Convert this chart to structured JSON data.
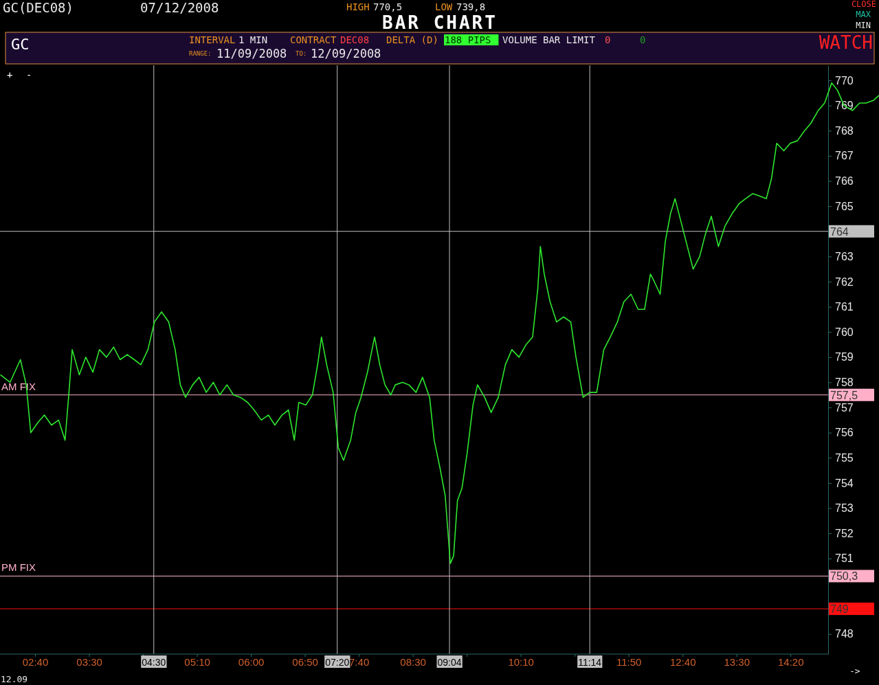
{
  "chart_data": {
    "type": "line",
    "title": "BAR CHART",
    "annotations": [
      "GC(DEC08)",
      "07/12/2008",
      "HIGH",
      "770,5",
      "LOW",
      "739,8",
      "CLOSE",
      "MAX",
      "MIN",
      "GC",
      "INTERVAL",
      "1 MIN",
      "CONTRACT",
      "DEC08",
      "DELTA (D)",
      "188 PIPS",
      "VOLUME BAR LIMIT",
      "0",
      "0",
      "WATCH",
      "RANGE:",
      "11/09/2008",
      "TO:",
      "12/09/2008",
      "+",
      "-",
      "12.09",
      "->",
      {
        "text": "AM FIX",
        "y": 757.5
      },
      {
        "text": "PM FIX",
        "y": 750.3
      }
    ],
    "xlim": [
      2.125,
      15.7
    ],
    "ylim": [
      747.2,
      770.6
    ],
    "xticks": [
      {
        "value": 2.6667,
        "label": "02:40"
      },
      {
        "value": 3.5,
        "label": "03:30"
      },
      {
        "value": 4.3333,
        "label": null
      },
      {
        "value": 5.1667,
        "label": "05:10"
      },
      {
        "value": 6,
        "label": "06:00"
      },
      {
        "value": 6.8333,
        "label": "06:50"
      },
      {
        "value": 7.6667,
        "label": "7:40"
      },
      {
        "value": 8.5,
        "label": "08:30"
      },
      {
        "value": 9.3333,
        "label": null
      },
      {
        "value": 10.1667,
        "label": "10:10"
      },
      {
        "value": 11,
        "label": null
      },
      {
        "value": 11.8333,
        "label": "11:50"
      },
      {
        "value": 12.6667,
        "label": "12:40"
      },
      {
        "value": 13.5,
        "label": "13:30"
      },
      {
        "value": 14.3333,
        "label": "14:20"
      }
    ],
    "yticks": [
      748,
      751,
      752,
      753,
      754,
      755,
      756,
      757,
      758,
      759,
      760,
      761,
      762,
      763,
      765,
      766,
      767,
      768,
      769,
      770
    ],
    "ref_lines": [
      {
        "axis": "y",
        "value": 764,
        "label": "764",
        "color": "#c0c0c0"
      },
      {
        "axis": "y",
        "value": 757.5,
        "label": "757,5",
        "color": "#ffb0c8"
      },
      {
        "axis": "y",
        "value": 750.3,
        "label": "750,3",
        "color": "#ffb0c8"
      },
      {
        "axis": "y",
        "value": 749,
        "label": "749",
        "color": "#ff1010"
      },
      {
        "axis": "x",
        "value": 4.5,
        "label": "04:30",
        "color": "#c0c0c0"
      },
      {
        "axis": "x",
        "value": 7.3333,
        "label": "07:20",
        "color": "#c0c0c0"
      },
      {
        "axis": "x",
        "value": 9.0667,
        "label": "09:04",
        "color": "#c0c0c0"
      },
      {
        "axis": "x",
        "value": 11.2333,
        "label": "11:14",
        "color": "#c0c0c0"
      }
    ],
    "series": [
      {
        "color": "#2ee62e",
        "x": [
          2.13,
          2.28,
          2.44,
          2.53,
          2.6,
          2.71,
          2.81,
          2.92,
          3.03,
          3.13,
          3.19,
          3.24,
          3.35,
          3.45,
          3.56,
          3.66,
          3.77,
          3.88,
          3.98,
          4.09,
          4.2,
          4.3,
          4.41,
          4.51,
          4.62,
          4.73,
          4.83,
          4.91,
          4.99,
          5.1,
          5.2,
          5.31,
          5.42,
          5.52,
          5.63,
          5.73,
          5.84,
          5.95,
          6.05,
          6.16,
          6.27,
          6.37,
          6.48,
          6.58,
          6.67,
          6.74,
          6.85,
          6.95,
          7.03,
          7.09,
          7.17,
          7.27,
          7.35,
          7.43,
          7.54,
          7.62,
          7.7,
          7.8,
          7.91,
          7.99,
          8.07,
          8.16,
          8.23,
          8.34,
          8.44,
          8.55,
          8.65,
          8.76,
          8.83,
          8.92,
          9.0,
          9.08,
          9.13,
          9.19,
          9.26,
          9.34,
          9.43,
          9.5,
          9.61,
          9.71,
          9.82,
          9.93,
          10.03,
          10.14,
          10.25,
          10.35,
          10.43,
          10.47,
          10.53,
          10.62,
          10.72,
          10.83,
          10.94,
          11.02,
          11.13,
          11.23,
          11.34,
          11.45,
          11.55,
          11.66,
          11.76,
          11.87,
          11.98,
          12.08,
          12.17,
          12.23,
          12.32,
          12.4,
          12.48,
          12.55,
          12.63,
          12.72,
          12.83,
          12.93,
          13.02,
          13.11,
          13.22,
          13.32,
          13.43,
          13.54,
          13.64,
          13.75,
          13.86,
          13.96,
          14.04,
          14.12,
          14.23,
          14.33,
          14.44,
          14.55,
          14.65,
          14.76,
          14.86,
          14.97,
          15.06,
          15.16,
          15.29,
          15.4,
          15.5,
          15.61,
          15.7
        ],
        "values": [
          758.3,
          758.0,
          758.9,
          757.9,
          756.0,
          756.4,
          756.7,
          756.3,
          756.5,
          755.7,
          757.6,
          759.3,
          758.3,
          759.0,
          758.4,
          759.3,
          759.0,
          759.4,
          758.9,
          759.1,
          758.9,
          758.7,
          759.3,
          760.4,
          760.8,
          760.4,
          759.3,
          757.9,
          757.4,
          757.9,
          758.2,
          757.6,
          758.0,
          757.5,
          757.9,
          757.5,
          757.4,
          757.2,
          756.9,
          756.5,
          756.7,
          756.3,
          756.7,
          756.9,
          755.7,
          757.2,
          757.1,
          757.5,
          758.7,
          759.8,
          758.7,
          757.6,
          755.4,
          754.9,
          755.7,
          756.8,
          757.4,
          758.4,
          759.8,
          758.7,
          757.9,
          757.5,
          757.9,
          758.0,
          757.9,
          757.6,
          758.2,
          757.4,
          755.7,
          754.6,
          753.5,
          750.8,
          751.1,
          753.3,
          753.8,
          755.2,
          757.1,
          757.9,
          757.4,
          756.8,
          757.4,
          758.7,
          759.3,
          759.0,
          759.5,
          759.8,
          761.7,
          763.4,
          762.3,
          761.2,
          760.4,
          760.6,
          760.4,
          759.0,
          757.4,
          757.6,
          757.6,
          759.3,
          759.8,
          760.4,
          761.2,
          761.5,
          760.9,
          760.9,
          762.3,
          762.0,
          761.5,
          763.6,
          764.7,
          765.3,
          764.5,
          763.6,
          762.5,
          763.0,
          763.9,
          764.6,
          763.4,
          764.2,
          764.7,
          765.1,
          765.3,
          765.5,
          765.4,
          765.3,
          766.1,
          767.5,
          767.2,
          767.5,
          767.6,
          768.0,
          768.3,
          768.8,
          769.1,
          769.9,
          769.6,
          769.0,
          768.8,
          769.1,
          769.1,
          769.2,
          769.4
        ]
      }
    ]
  }
}
